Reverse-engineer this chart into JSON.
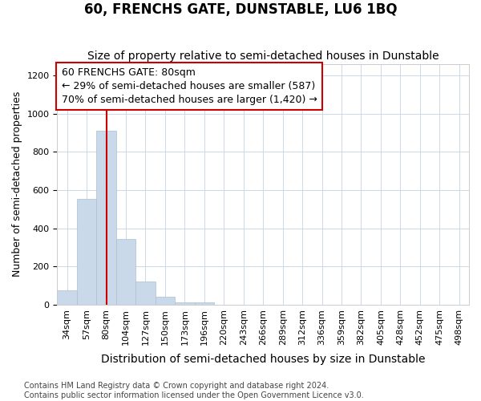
{
  "title": "60, FRENCHS GATE, DUNSTABLE, LU6 1BQ",
  "subtitle": "Size of property relative to semi-detached houses in Dunstable",
  "xlabel": "Distribution of semi-detached houses by size in Dunstable",
  "ylabel": "Number of semi-detached properties",
  "categories": [
    "34sqm",
    "57sqm",
    "80sqm",
    "104sqm",
    "127sqm",
    "150sqm",
    "173sqm",
    "196sqm",
    "220sqm",
    "243sqm",
    "266sqm",
    "289sqm",
    "312sqm",
    "336sqm",
    "359sqm",
    "382sqm",
    "405sqm",
    "428sqm",
    "452sqm",
    "475sqm",
    "498sqm"
  ],
  "values": [
    75,
    555,
    910,
    345,
    120,
    40,
    12,
    13,
    0,
    0,
    0,
    0,
    0,
    0,
    0,
    0,
    0,
    0,
    0,
    0,
    0
  ],
  "bar_color": "#c9d9ea",
  "bar_edgecolor": "#a8c0d6",
  "vline_x": 2,
  "vline_color": "#cc0000",
  "annotation_line1": "60 FRENCHS GATE: 80sqm",
  "annotation_line2": "← 29% of semi-detached houses are smaller (587)",
  "annotation_line3": "70% of semi-detached houses are larger (1,420) →",
  "annotation_box_color": "#ffffff",
  "annotation_box_edgecolor": "#cc0000",
  "ylim": [
    0,
    1260
  ],
  "yticks": [
    0,
    200,
    400,
    600,
    800,
    1000,
    1200
  ],
  "footnote": "Contains HM Land Registry data © Crown copyright and database right 2024.\nContains public sector information licensed under the Open Government Licence v3.0.",
  "title_fontsize": 12,
  "subtitle_fontsize": 10,
  "xlabel_fontsize": 10,
  "ylabel_fontsize": 9,
  "tick_fontsize": 8,
  "annotation_fontsize": 9,
  "footnote_fontsize": 7,
  "background_color": "#ffffff",
  "grid_color": "#cdd8e8"
}
